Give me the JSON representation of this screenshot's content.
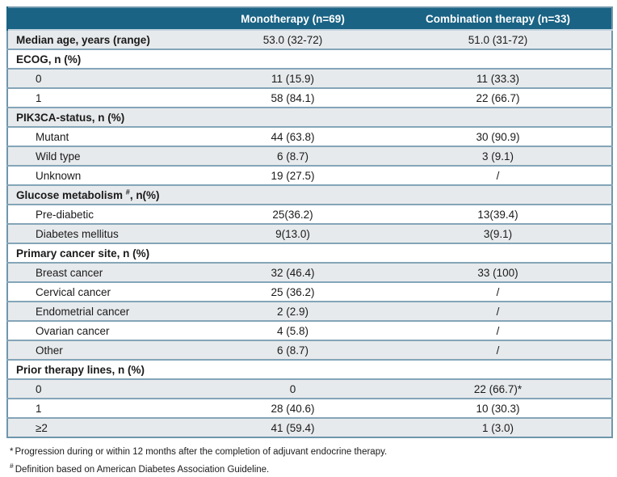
{
  "colors": {
    "header_background": "#1a6385",
    "header_text": "#ffffff",
    "row_shaded": "#e7eaec",
    "row_plain": "#ffffff",
    "row_border": "#84a5b8",
    "outer_border": "#6f96ac",
    "body_text": "#1a1a1a"
  },
  "table": {
    "header": {
      "label": "",
      "mono": "Monotherapy (n=69)",
      "combo": "Combination therapy (n=33)"
    },
    "rows": [
      {
        "type": "data",
        "label": "Median age, years (range)",
        "mono": "53.0 (32-72)",
        "combo": "51.0 (31-72)"
      },
      {
        "type": "section",
        "label": "ECOG, n (%)"
      },
      {
        "type": "data",
        "label": "0",
        "mono": "11 (15.9)",
        "combo": "11 (33.3)"
      },
      {
        "type": "data",
        "label": "1",
        "mono": "58 (84.1)",
        "combo": "22 (66.7)"
      },
      {
        "type": "section",
        "label": "PIK3CA-status, n (%)"
      },
      {
        "type": "data",
        "label": "Mutant",
        "mono": "44 (63.8)",
        "combo": "30 (90.9)"
      },
      {
        "type": "data",
        "label": "Wild type",
        "mono": "6 (8.7)",
        "combo": "3 (9.1)"
      },
      {
        "type": "data",
        "label": "Unknown",
        "mono": "19 (27.5)",
        "combo": "/"
      },
      {
        "type": "section",
        "label_prefix": "Glucose metabolism ",
        "label_sup": "#",
        "label_suffix": ", n(%)"
      },
      {
        "type": "data",
        "label": "Pre-diabetic",
        "mono": "25(36.2)",
        "combo": "13(39.4)"
      },
      {
        "type": "data",
        "label": "Diabetes mellitus",
        "mono": "9(13.0)",
        "combo": "3(9.1)"
      },
      {
        "type": "section",
        "label": "Primary cancer site, n (%)"
      },
      {
        "type": "data",
        "label": "Breast cancer",
        "mono": "32 (46.4)",
        "combo": "33 (100)"
      },
      {
        "type": "data",
        "label": "Cervical cancer",
        "mono": "25 (36.2)",
        "combo": "/"
      },
      {
        "type": "data",
        "label": "Endometrial cancer",
        "mono": "2 (2.9)",
        "combo": "/"
      },
      {
        "type": "data",
        "label": "Ovarian cancer",
        "mono": "4 (5.8)",
        "combo": "/"
      },
      {
        "type": "data",
        "label": "Other",
        "mono": "6 (8.7)",
        "combo": "/"
      },
      {
        "type": "section",
        "label": "Prior therapy lines, n (%)"
      },
      {
        "type": "data",
        "label": "0",
        "mono": "0",
        "combo": "22 (66.7)*"
      },
      {
        "type": "data",
        "label": "1",
        "mono": "28 (40.6)",
        "combo": "10 (30.3)"
      },
      {
        "type": "data",
        "label": "≥2",
        "mono": "41 (59.4)",
        "combo": "1 (3.0)"
      }
    ]
  },
  "footnotes": [
    {
      "marker": "*",
      "superscript": false,
      "text": "Progression during or within 12 months after the completion of adjuvant endocrine therapy."
    },
    {
      "marker": "#",
      "superscript": true,
      "text": "Definition based on  American Diabetes Association Guideline."
    }
  ]
}
